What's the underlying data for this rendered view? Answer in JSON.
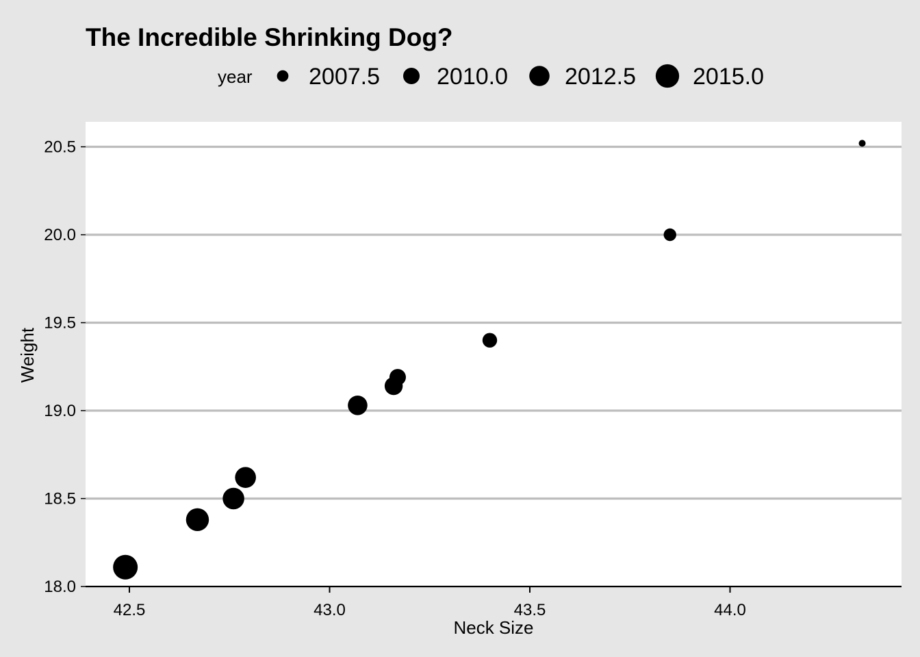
{
  "chart_data": {
    "type": "scatter",
    "title": "The Incredible Shrinking Dog?",
    "xlabel": "Neck Size",
    "ylabel": "Weight",
    "xlim": [
      42.38,
      44.42
    ],
    "ylim": [
      18.0,
      20.64
    ],
    "x_ticks": [
      42.5,
      43.0,
      43.5,
      44.0
    ],
    "x_tick_labels": [
      "42.5",
      "43.0",
      "43.5",
      "44.0"
    ],
    "y_ticks": [
      18.0,
      18.5,
      19.0,
      19.5,
      20.0,
      20.5
    ],
    "y_tick_labels": [
      "18.0",
      "18.5",
      "19.0",
      "19.5",
      "20.0",
      "20.5"
    ],
    "grid": "horizontal major lines only",
    "size_variable": "year",
    "size_range": [
      2006,
      2016
    ],
    "legend": {
      "title": "year",
      "position": "top",
      "entries": [
        {
          "label": "2007.5",
          "value": 2007.5
        },
        {
          "label": "2010.0",
          "value": 2010.0
        },
        {
          "label": "2012.5",
          "value": 2012.5
        },
        {
          "label": "2015.0",
          "value": 2015.0
        }
      ]
    },
    "points": [
      {
        "x": 44.33,
        "y": 20.52,
        "year": 2006
      },
      {
        "x": 43.85,
        "y": 20.0,
        "year": 2008
      },
      {
        "x": 43.4,
        "y": 19.4,
        "year": 2009
      },
      {
        "x": 43.17,
        "y": 19.19,
        "year": 2010
      },
      {
        "x": 43.16,
        "y": 19.14,
        "year": 2011
      },
      {
        "x": 43.07,
        "y": 19.03,
        "year": 2012
      },
      {
        "x": 42.79,
        "y": 18.62,
        "year": 2013
      },
      {
        "x": 42.76,
        "y": 18.5,
        "year": 2013.5
      },
      {
        "x": 42.67,
        "y": 18.38,
        "year": 2014.5
      },
      {
        "x": 42.49,
        "y": 18.11,
        "year": 2016
      }
    ],
    "colors": {
      "background": "#e6e6e6",
      "panel": "#ffffff",
      "grid": "#bdbdbd",
      "point": "#000000",
      "text": "#000000"
    }
  }
}
